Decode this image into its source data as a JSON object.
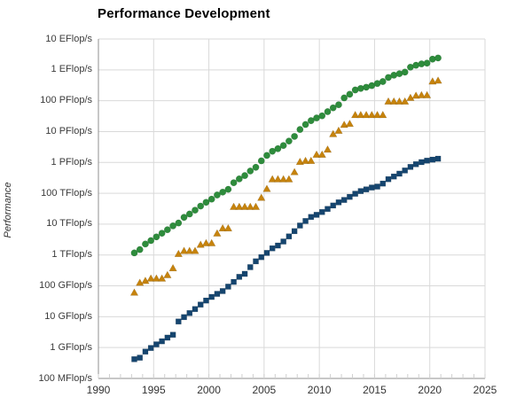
{
  "title": "Performance Development",
  "colors": {
    "sum_series": "#2e8c3c",
    "top1_series": "#c6830d",
    "top500_series": "#15456f",
    "gridline": "#d9d9d9",
    "axis_line": "#8f8f8f",
    "minor_tick": "#cfcfcf",
    "tick_text": "#3b3b3b",
    "background": "#ffffff"
  },
  "chart_data": {
    "type": "scatter",
    "title": "Performance Development",
    "xlabel": "",
    "ylabel": "Performance",
    "y_scale": "log",
    "y_unit": "GFlop/s",
    "xlim": [
      1990,
      2025
    ],
    "ylim_gflops": [
      0.1,
      10000000000
    ],
    "grid": true,
    "legend": "none",
    "x_minor_tick_interval_years": 1,
    "x_ticks": [
      1990,
      1995,
      2000,
      2005,
      2010,
      2015,
      2020,
      2025
    ],
    "x_tick_labels": [
      "1990",
      "1995",
      "2000",
      "2005",
      "2010",
      "2015",
      "2020",
      "2025"
    ],
    "y_ticks": [
      {
        "label": "10 EFlop/s",
        "gflops": 10000000000
      },
      {
        "label": "1 EFlop/s",
        "gflops": 1000000000
      },
      {
        "label": "100 PFlop/s",
        "gflops": 100000000
      },
      {
        "label": "10 PFlop/s",
        "gflops": 10000000
      },
      {
        "label": "1 PFlop/s",
        "gflops": 1000000
      },
      {
        "label": "100 TFlop/s",
        "gflops": 100000
      },
      {
        "label": "10 TFlop/s",
        "gflops": 10000
      },
      {
        "label": "1 TFlop/s",
        "gflops": 1000
      },
      {
        "label": "100 GFlop/s",
        "gflops": 100
      },
      {
        "label": "10 GFlop/s",
        "gflops": 10
      },
      {
        "label": "1 GFlop/s",
        "gflops": 1
      },
      {
        "label": "100 MFlop/s",
        "gflops": 0.1
      }
    ],
    "x_offsets": {
      "Jun": 0.25,
      "Nov": 0.75
    },
    "lists": [
      "Jun 1993",
      "Nov 1993",
      "Jun 1994",
      "Nov 1994",
      "Jun 1995",
      "Nov 1995",
      "Jun 1996",
      "Nov 1996",
      "Jun 1997",
      "Nov 1997",
      "Jun 1998",
      "Nov 1998",
      "Jun 1999",
      "Nov 1999",
      "Jun 2000",
      "Nov 2000",
      "Jun 2001",
      "Nov 2001",
      "Jun 2002",
      "Nov 2002",
      "Jun 2003",
      "Nov 2003",
      "Jun 2004",
      "Nov 2004",
      "Jun 2005",
      "Nov 2005",
      "Jun 2006",
      "Nov 2006",
      "Jun 2007",
      "Nov 2007",
      "Jun 2008",
      "Nov 2008",
      "Jun 2009",
      "Nov 2009",
      "Jun 2010",
      "Nov 2010",
      "Jun 2011",
      "Nov 2011",
      "Jun 2012",
      "Nov 2012",
      "Jun 2013",
      "Nov 2013",
      "Jun 2014",
      "Nov 2014",
      "Jun 2015",
      "Nov 2015",
      "Jun 2016",
      "Nov 2016",
      "Jun 2017",
      "Nov 2017",
      "Jun 2018",
      "Nov 2018",
      "Jun 2019",
      "Nov 2019",
      "Jun 2020",
      "Nov 2020"
    ],
    "series": [
      {
        "name": "Sum (green circles)",
        "marker": "circle",
        "color": "#2e8c3c",
        "values_gflops": [
          1170,
          1500,
          2270,
          2930,
          3870,
          5080,
          6600,
          8800,
          10900,
          16600,
          21300,
          28300,
          38500,
          50900,
          64600,
          88100,
          108800,
          134400,
          220000,
          293000,
          375000,
          528000,
          696000,
          1127000,
          1690000,
          2300000,
          2790000,
          3540000,
          4920000,
          6970000,
          11700000,
          16950000,
          22600000,
          27600000,
          32400000,
          44200000,
          58900000,
          74200000,
          123400000,
          162000000,
          223000000,
          250000000,
          274000000,
          309000000,
          361000000,
          418000000,
          566700000,
          672000000,
          749000000,
          845000000,
          1220000000,
          1410000000,
          1560000000,
          1650000000,
          2220000000,
          2430000000
        ]
      },
      {
        "name": "#1 (orange triangles)",
        "marker": "triangle",
        "color": "#c6830d",
        "values_gflops": [
          59.7,
          124,
          143.4,
          170,
          170,
          170,
          220.4,
          368.2,
          1068,
          1338,
          1338,
          1338,
          2121,
          2379,
          2379,
          4938,
          7226,
          7226,
          35860,
          35860,
          35860,
          35860,
          35860,
          70720,
          136800,
          280600,
          280600,
          280600,
          280600,
          478200,
          1026000,
          1105000,
          1105000,
          1759000,
          1759000,
          2566000,
          8162000,
          10510000,
          16324800,
          17590000,
          33862700,
          33862700,
          33862700,
          33862700,
          33862700,
          33862700,
          93014600,
          93014600,
          93014600,
          93014600,
          122300000,
          143500000,
          148600000,
          148600000,
          415530000,
          442010000
        ]
      },
      {
        "name": "#500 (blue squares)",
        "marker": "square",
        "color": "#15456f",
        "values_gflops": [
          0.42,
          0.47,
          0.74,
          0.97,
          1.27,
          1.6,
          2.1,
          2.6,
          7.0,
          9.7,
          13.1,
          17.7,
          24.7,
          33.4,
          43.8,
          55.1,
          67.8,
          94.3,
          134.3,
          195.8,
          245.1,
          403.4,
          624.3,
          850.6,
          1166,
          1645,
          2026,
          2737,
          4005,
          5929,
          9002,
          12640,
          17100,
          20050,
          24670,
          31100,
          40190,
          50900,
          60820,
          76450,
          96620,
          117800,
          133700,
          153600,
          164800,
          206300,
          286100,
          349300,
          432200,
          548700,
          715600,
          874800,
          1022000,
          1142000,
          1230000,
          1320000
        ]
      }
    ]
  }
}
